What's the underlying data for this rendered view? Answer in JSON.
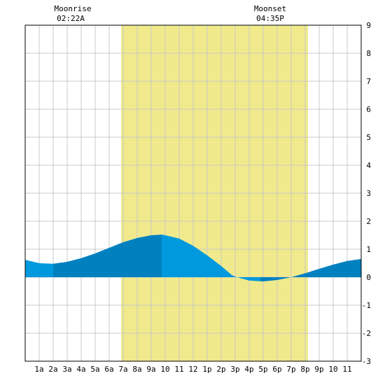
{
  "header": {
    "moonrise_label": "Moonrise",
    "moonrise_time": "02:22A",
    "moonset_label": "Moonset",
    "moonset_time": "04:35P"
  },
  "chart_data": {
    "type": "area",
    "title": "",
    "xlabel": "",
    "ylabel": "",
    "xlim": [
      0,
      24
    ],
    "ylim": [
      -3,
      9
    ],
    "x_tick_labels": [
      "1a",
      "2a",
      "3a",
      "4a",
      "5a",
      "6a",
      "7a",
      "8a",
      "9a",
      "10",
      "11",
      "12",
      "1p",
      "2p",
      "3p",
      "4p",
      "5p",
      "6p",
      "7p",
      "8p",
      "9p",
      "10",
      "11"
    ],
    "y_tick_labels": [
      "9",
      "8",
      "7",
      "6",
      "5",
      "4",
      "3",
      "2",
      "1",
      "0",
      "-1",
      "-2",
      "-3"
    ],
    "daylight_hours": [
      6.85,
      20.2
    ],
    "moonrise_hour": 2.37,
    "moonset_hour": 16.58,
    "grid": true,
    "colors": {
      "daylight": "#f0ea8c",
      "rising": "#0080bf",
      "falling": "#0099dd",
      "grid": "#c8c8c8"
    },
    "tide": {
      "x": [
        0,
        1,
        2,
        3,
        4,
        5,
        6,
        7,
        8,
        9,
        9.75,
        10,
        11,
        12,
        13,
        14,
        14.75,
        15,
        16,
        17,
        18,
        19,
        20,
        21,
        22,
        23,
        24
      ],
      "y": [
        0.62,
        0.5,
        0.48,
        0.55,
        0.68,
        0.85,
        1.05,
        1.25,
        1.4,
        1.5,
        1.52,
        1.5,
        1.38,
        1.12,
        0.78,
        0.4,
        0.08,
        0.02,
        -0.12,
        -0.15,
        -0.1,
        0.0,
        0.14,
        0.3,
        0.45,
        0.58,
        0.65
      ],
      "segments": [
        {
          "from": 0,
          "to": 2,
          "phase": "falling"
        },
        {
          "from": 2,
          "to": 9.75,
          "phase": "rising"
        },
        {
          "from": 9.75,
          "to": 16.8,
          "phase": "falling"
        },
        {
          "from": 16.8,
          "to": 24,
          "phase": "rising"
        }
      ]
    }
  }
}
